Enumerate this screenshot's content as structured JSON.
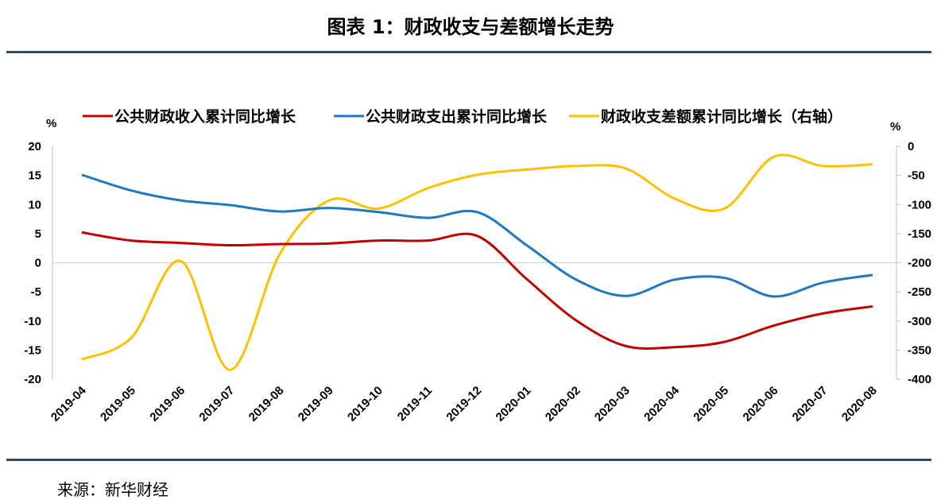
{
  "title": "图表 1：财政收支与差额增长走势",
  "source": "来源：新华财经",
  "chart_data": {
    "type": "line",
    "title": "",
    "ylabel_left": "%",
    "ylabel_right": "%",
    "ylim_left": [
      -20,
      20
    ],
    "yticks_left": [
      20,
      15,
      10,
      5,
      0,
      -5,
      -10,
      -15,
      -20
    ],
    "ylim_right": [
      -400,
      0
    ],
    "yticks_right": [
      0,
      -50,
      -100,
      -150,
      -200,
      -250,
      -300,
      -350,
      -400
    ],
    "legend_position": "top",
    "grid": false,
    "categories": [
      "2019-04",
      "2019-05",
      "2019-06",
      "2019-07",
      "2019-08",
      "2019-09",
      "2019-10",
      "2019-11",
      "2019-12",
      "2020-01",
      "2020-02",
      "2020-03",
      "2020-04",
      "2020-05",
      "2020-06",
      "2020-07",
      "2020-08"
    ],
    "series": [
      {
        "name": "公共财政收入累计同比增长",
        "axis": "left",
        "color": "#c00000",
        "values": [
          5.2,
          3.8,
          3.4,
          3.0,
          3.2,
          3.3,
          3.8,
          3.8,
          4.6,
          -2.8,
          -9.9,
          -14.3,
          -14.5,
          -13.6,
          -10.8,
          -8.7,
          -7.5
        ]
      },
      {
        "name": "公共财政支出累计同比增长",
        "axis": "left",
        "color": "#1f78c1",
        "values": [
          15.1,
          12.4,
          10.7,
          9.9,
          8.8,
          9.4,
          8.7,
          7.7,
          8.7,
          3.0,
          -2.9,
          -5.7,
          -2.9,
          -2.6,
          -5.8,
          -3.4,
          -2.1
        ]
      },
      {
        "name": "财政收支差额累计同比增长（右轴）",
        "axis": "right",
        "color": "#ffc000",
        "values": [
          -366,
          -329,
          -197,
          -384,
          -186,
          -93,
          -107,
          -72,
          -49,
          -40,
          -34,
          -38,
          -90,
          -107,
          -18,
          -34,
          -31
        ]
      }
    ]
  }
}
